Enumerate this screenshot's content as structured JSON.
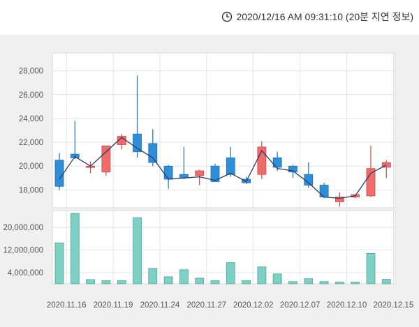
{
  "header": {
    "timestamp": "2020/12/16 AM 09:31:10 (20분 지연 정보)",
    "icon": "clock-icon"
  },
  "colors": {
    "up": "#f06b6b",
    "down": "#2e8fd8",
    "volume": "#7fd0c4",
    "ma_line": "#2b3a67"
  },
  "chart_data": [
    {
      "type": "candlestick",
      "title": "",
      "ylabel": "",
      "xlabel": "",
      "y_ticks": [
        "18,000",
        "20,000",
        "22,000",
        "24,000",
        "26,000",
        "28,000"
      ],
      "ylim": [
        16500,
        29500
      ],
      "grid": true,
      "candles": [
        {
          "open": 20500,
          "close": 18300,
          "high": 21100,
          "low": 18000
        },
        {
          "open": 21000,
          "close": 20700,
          "high": 23800,
          "low": 20600
        },
        {
          "open": 19900,
          "close": 20000,
          "high": 20400,
          "low": 19400
        },
        {
          "open": 19500,
          "close": 21700,
          "high": 21700,
          "low": 19200
        },
        {
          "open": 21800,
          "close": 22500,
          "high": 22700,
          "low": 21400
        },
        {
          "open": 22700,
          "close": 21200,
          "high": 27600,
          "low": 20700
        },
        {
          "open": 21900,
          "close": 20300,
          "high": 23100,
          "low": 20000
        },
        {
          "open": 20000,
          "close": 18900,
          "high": 20100,
          "low": 18100
        },
        {
          "open": 19300,
          "close": 19000,
          "high": 21600,
          "low": 18900
        },
        {
          "open": 19200,
          "close": 19600,
          "high": 19700,
          "low": 18400
        },
        {
          "open": 20000,
          "close": 18700,
          "high": 20200,
          "low": 18700
        },
        {
          "open": 20700,
          "close": 19300,
          "high": 21600,
          "low": 19100
        },
        {
          "open": 18900,
          "close": 18600,
          "high": 19100,
          "low": 18500
        },
        {
          "open": 19300,
          "close": 21600,
          "high": 22100,
          "low": 18900
        },
        {
          "open": 20700,
          "close": 19900,
          "high": 21200,
          "low": 19600
        },
        {
          "open": 20000,
          "close": 19500,
          "high": 20100,
          "low": 19000
        },
        {
          "open": 19300,
          "close": 18400,
          "high": 20300,
          "low": 18200
        },
        {
          "open": 18400,
          "close": 17400,
          "high": 18600,
          "low": 17300
        },
        {
          "open": 17000,
          "close": 17400,
          "high": 17800,
          "low": 16600
        },
        {
          "open": 17400,
          "close": 17600,
          "high": 17600,
          "low": 17300
        },
        {
          "open": 17500,
          "close": 19800,
          "high": 21700,
          "low": 17400
        },
        {
          "open": 19900,
          "close": 20300,
          "high": 20500,
          "low": 19000
        }
      ],
      "ma_line": [
        18900,
        20800,
        20000,
        21200,
        22400,
        21500,
        20700,
        18900,
        19000,
        19100,
        18800,
        19400,
        18700,
        21300,
        19800,
        19600,
        18600,
        17400,
        17300,
        17500,
        19400,
        20100
      ]
    },
    {
      "type": "bar",
      "title": "",
      "ylabel": "",
      "xlabel": "",
      "y_ticks": [
        "4,000,000",
        "12,000,000",
        "20,000,000"
      ],
      "ylim": [
        0,
        26000000
      ],
      "grid": true,
      "values": [
        14500000,
        25000000,
        1500000,
        1100000,
        1100000,
        23500000,
        5500000,
        2500000,
        5000000,
        2000000,
        1100000,
        7500000,
        1100000,
        6000000,
        3500000,
        800000,
        1800000,
        800000,
        600000,
        600000,
        10800000,
        1600000
      ]
    }
  ],
  "x_labels": [
    "2020.11.16",
    "2020.11.19",
    "2020.11.24",
    "2020.11.27",
    "2020.12.02",
    "2020.12.07",
    "2020.12.10",
    "2020.12.15"
  ],
  "x_label_candle_indices": [
    1,
    4,
    7,
    10,
    13,
    16,
    19,
    22
  ]
}
